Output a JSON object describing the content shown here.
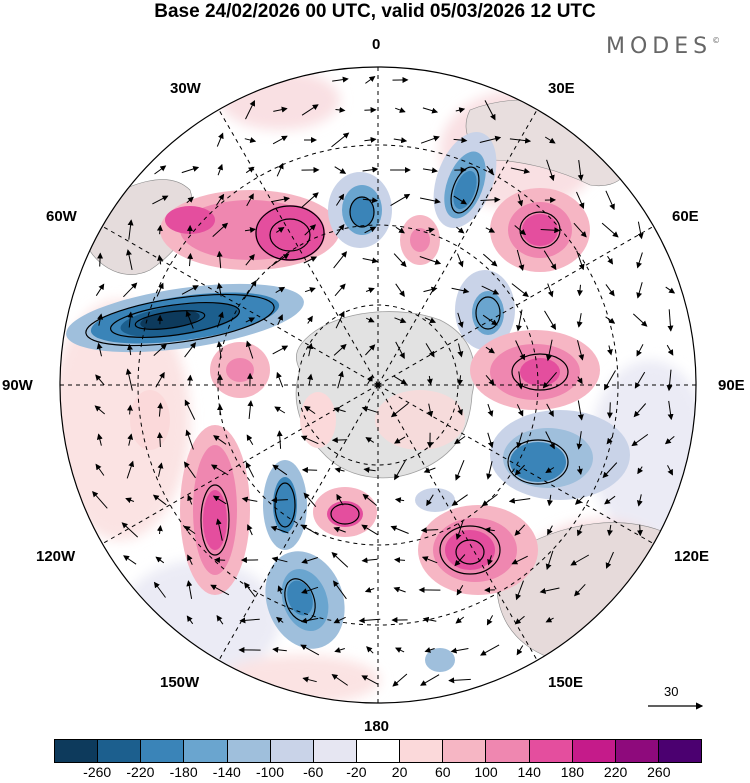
{
  "title": "Base 24/02/2026 00 UTC, valid 05/03/2026 12 UTC",
  "logo_text": "MODES",
  "logo_mark": "©",
  "projection": "south polar stereographic",
  "longitude_labels": {
    "top": "0",
    "bottom": "180",
    "left": "90W",
    "right": "90E",
    "upper_left_1": "30W",
    "upper_left_2": "60W",
    "lower_left_1": "120W",
    "lower_left_2": "150W",
    "upper_right_1": "30E",
    "upper_right_2": "60E",
    "lower_right_1": "120E",
    "lower_right_2": "150E"
  },
  "reference_vector": {
    "label": "30"
  },
  "colorbar": {
    "colors": [
      "#0d3a5c",
      "#1c5f8e",
      "#3a84b8",
      "#6aa5cf",
      "#9fbfdc",
      "#c9d3e8",
      "#e6e6f2",
      "#ffffff",
      "#fbd9da",
      "#f6b6c4",
      "#ef87b0",
      "#e44e9e",
      "#c51b8a",
      "#8e0a7c",
      "#4b0070"
    ],
    "tick_labels": [
      "-260",
      "-220",
      "-180",
      "-140",
      "-100",
      "-60",
      "-20",
      "20",
      "60",
      "100",
      "140",
      "180",
      "220",
      "260"
    ]
  },
  "colors": {
    "continent": "#dcdcdc",
    "graticule": "#000000"
  }
}
